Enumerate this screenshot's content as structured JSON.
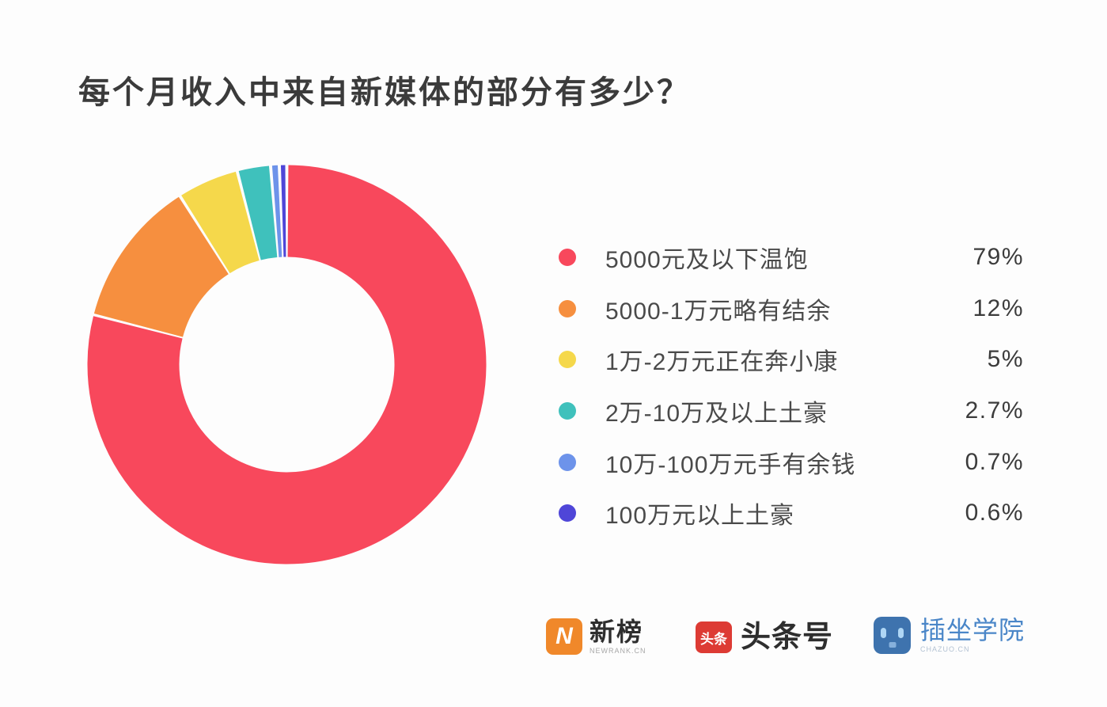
{
  "page": {
    "background": "#fdfdfd"
  },
  "header": {
    "title": "每个月收入中来自新媒体的部分有多少？"
  },
  "chart_data": {
    "type": "pie",
    "subtype": "donut",
    "title": "每个月收入中来自新媒体的部分有多少？",
    "unit": "%",
    "direction": "clockwise",
    "start_angle_deg": 0,
    "donut_hole_ratio": 0.54,
    "legend_position": "right",
    "series": [
      {
        "label": "5000元及以下温饱",
        "value": 79,
        "percent_label": "79%",
        "color": "#f8485c"
      },
      {
        "label": "5000-1万元略有结余",
        "value": 12,
        "percent_label": "12%",
        "color": "#f68f3f"
      },
      {
        "label": "1万-2万元正在奔小康",
        "value": 5,
        "percent_label": "5%",
        "color": "#f5d84b"
      },
      {
        "label": "2万-10万及以上土豪",
        "value": 2.7,
        "percent_label": "2.7%",
        "color": "#3fc1bc"
      },
      {
        "label": "10万-100万元手有余钱",
        "value": 0.7,
        "percent_label": "0.7%",
        "color": "#6d93ea"
      },
      {
        "label": "100万元以上土豪",
        "value": 0.6,
        "percent_label": "0.6%",
        "color": "#4f46d8"
      }
    ]
  },
  "footer": {
    "logos": [
      {
        "id": "newrank",
        "mark_text": "N",
        "mark_color": "#f0882a",
        "title": "新榜",
        "subtitle": "NEWRANK.CN"
      },
      {
        "id": "toutiao",
        "mark_text": "头条",
        "mark_color": "#dd3b34",
        "title": "头条号"
      },
      {
        "id": "chazuo",
        "mark_color": "#3e73ae",
        "title": "插坐学院",
        "title_color": "#4a86c8",
        "subtitle": "CHAZUO.CN"
      }
    ]
  }
}
